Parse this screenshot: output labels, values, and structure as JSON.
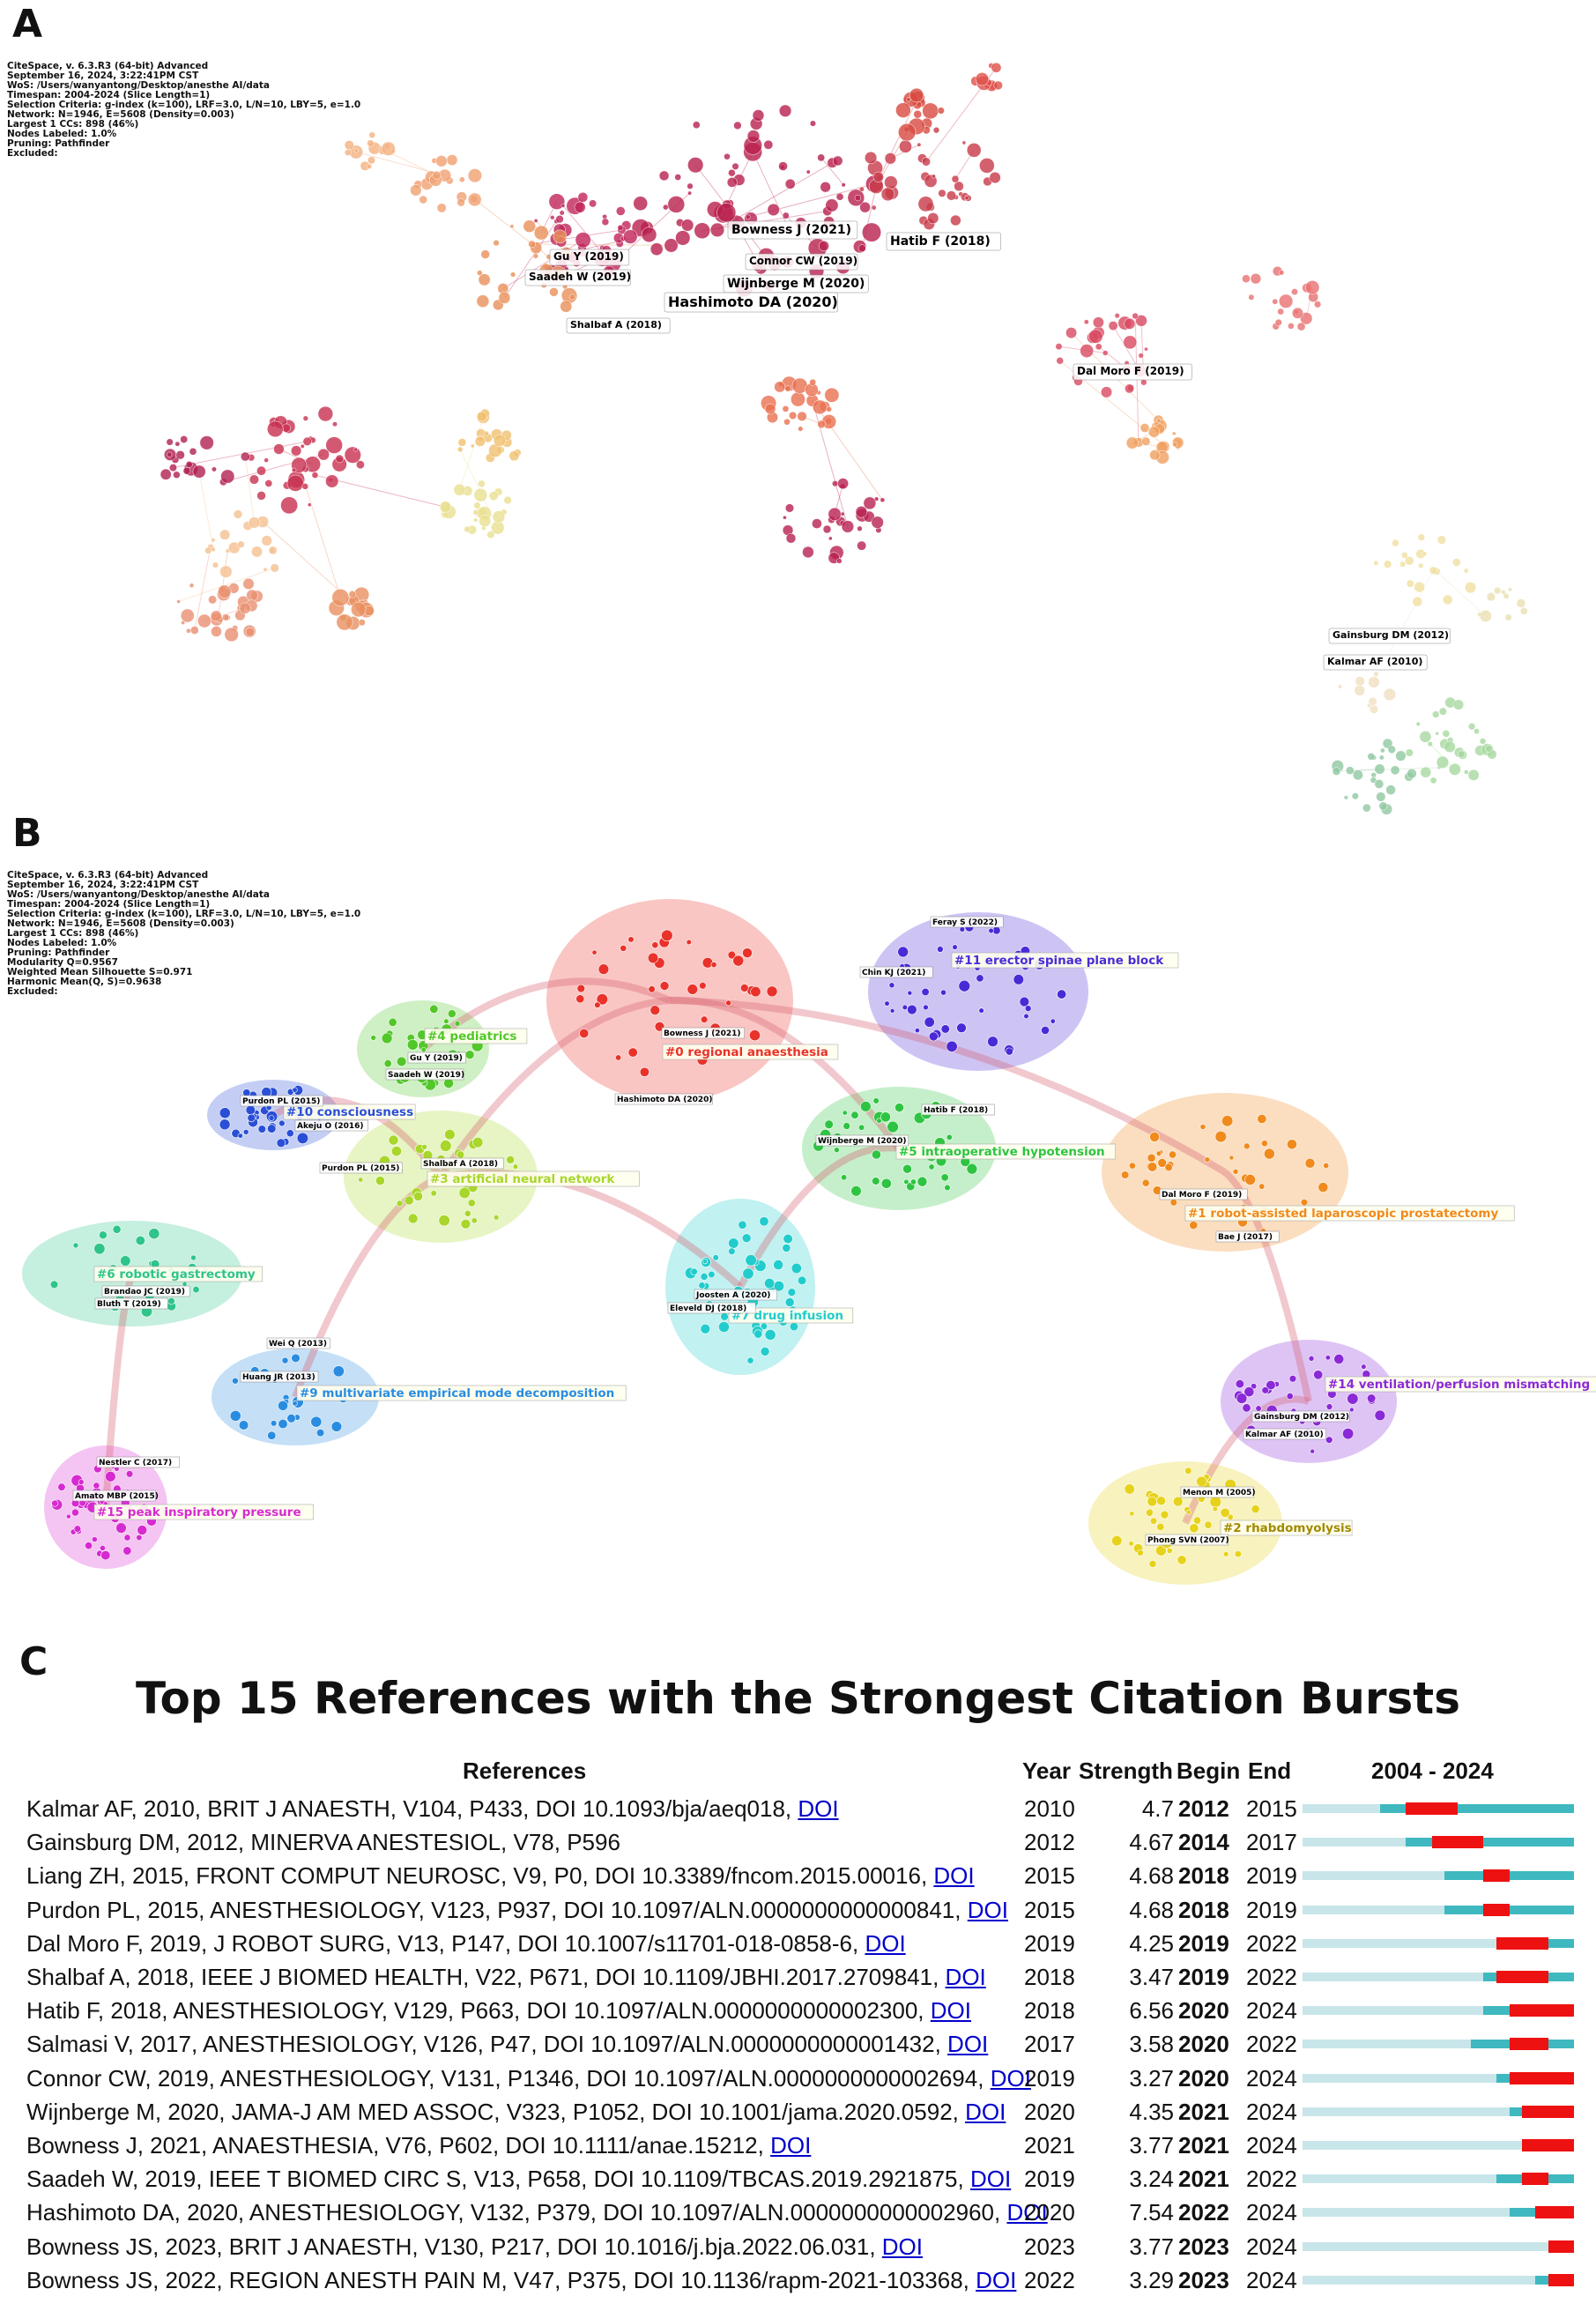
{
  "panels": {
    "a_letter": "A",
    "b_letter": "B",
    "c_letter": "C"
  },
  "panel_a": {
    "meta_lines": [
      "CiteSpace, v. 6.3.R3 (64-bit) Advanced",
      "September 16, 2024, 3:22:41PM CST",
      "WoS: /Users/wanyantong/Desktop/anesthe AI/data",
      "Timespan: 2004-2024 (Slice Length=1)",
      "Selection Criteria: g-index (k=100), LRF=3.0, L/N=10, LBY=5, e=1.0",
      "Network: N=1946, E=5608 (Density=0.003)",
      "Largest 1 CCs: 898 (46%)",
      "Nodes Labeled: 1.0%",
      "Pruning: Pathfinder",
      "Excluded:"
    ],
    "node_labels": [
      "Bowness J (2021)",
      "Hatib F (2018)",
      "Gu Y (2019)",
      "Connor CW (2019)",
      "Saadeh W (2019)",
      "Wijnberge M (2020)",
      "Hashimoto DA (2020)",
      "Shalbaf A (2018)",
      "Dal Moro F (2019)",
      "Gainsburg DM (2012)",
      "Kalmar AF (2010)"
    ]
  },
  "panel_b": {
    "meta_lines": [
      "CiteSpace, v. 6.3.R3 (64-bit) Advanced",
      "September 16, 2024, 3:22:41PM CST",
      "WoS: /Users/wanyantong/Desktop/anesthe AI/data",
      "Timespan: 2004-2024 (Slice Length=1)",
      "Selection Criteria: g-index (k=100), LRF=3.0, L/N=10, LBY=5, e=1.0",
      "Network: N=1946, E=5608 (Density=0.003)",
      "Largest 1 CCs: 898 (46%)",
      "Nodes Labeled: 1.0%",
      "Pruning: Pathfinder",
      "Modularity Q=0.9567",
      "Weighted Mean Silhouette S=0.971",
      "Harmonic Mean(Q, S)=0.9638",
      "Excluded:"
    ],
    "clusters": [
      {
        "label": "#0 regional anaesthesia",
        "color": "#e8322a",
        "nodes": [
          "Bowness J (2021)",
          "Hashimoto DA (2020)"
        ]
      },
      {
        "label": "#1 robot-assisted laparoscopic prostatectomy",
        "color": "#f08a1c",
        "nodes": [
          "Dal Moro F (2019)",
          "Bae J (2017)"
        ]
      },
      {
        "label": "#2 rhabdomyolysis",
        "color": "#e6d21a",
        "nodes": [
          "Menon M (2005)",
          "Phong SVN (2007)"
        ]
      },
      {
        "label": "#3 artificial neural network",
        "color": "#a8d62a",
        "nodes": [
          "Purdon PL (2015)",
          "Shalbaf A (2018)"
        ]
      },
      {
        "label": "#4 pediatrics",
        "color": "#52c72a",
        "nodes": [
          "Gu Y (2019)",
          "Saadeh W (2019)"
        ]
      },
      {
        "label": "#5 intraoperative hypotension",
        "color": "#2ec442",
        "nodes": [
          "Wijnberge M (2020)",
          "Hatib F (2018)"
        ]
      },
      {
        "label": "#6 robotic gastrectomy",
        "color": "#2ec48a",
        "nodes": [
          "Brandao JC (2019)",
          "Bluth T (2019)"
        ]
      },
      {
        "label": "#7 drug infusion",
        "color": "#22cccc",
        "nodes": [
          "Joosten A (2020)",
          "Eleveld DJ (2018)"
        ]
      },
      {
        "label": "#9 multivariate empirical mode decomposition",
        "color": "#2a8ce0",
        "nodes": [
          "Wei Q (2013)",
          "Huang JR (2013)"
        ]
      },
      {
        "label": "#10 consciousness",
        "color": "#2a4fd6",
        "nodes": [
          "Purdon PL (2015)",
          "Akeju O (2016)"
        ]
      },
      {
        "label": "#11 erector spinae plane block",
        "color": "#4a2ad6",
        "nodes": [
          "Feray S (2022)",
          "Chin KJ (2021)"
        ]
      },
      {
        "label": "#14 ventilation/perfusion mismatching",
        "color": "#8a2ad6",
        "nodes": [
          "Gainsburg DM (2012)",
          "Kalmar AF (2010)"
        ]
      },
      {
        "label": "#15 peak inspiratory pressure",
        "color": "#d62ad0",
        "nodes": [
          "Nestler C (2017)",
          "Amato MBP (2015)"
        ]
      }
    ]
  },
  "chart_data": {
    "type": "table",
    "title": "Top 15 References with the Strongest Citation Bursts",
    "columns": [
      "References",
      "Year",
      "Strength",
      "Begin",
      "End",
      "2004 - 2024"
    ],
    "timeline": {
      "start": 2004,
      "end": 2024
    },
    "rows": [
      {
        "ref": "Kalmar AF, 2010, BRIT J ANAESTH, V104, P433, DOI 10.1093/bja/aeq018,",
        "doi": "DOI",
        "year": 2010,
        "strength": "4.7",
        "begin": 2012,
        "end": 2015
      },
      {
        "ref": "Gainsburg DM, 2012, MINERVA ANESTESIOL, V78, P596",
        "doi": "",
        "year": 2012,
        "strength": "4.67",
        "begin": 2014,
        "end": 2017
      },
      {
        "ref": "Liang ZH, 2015, FRONT COMPUT NEUROSC, V9, P0, DOI 10.3389/fncom.2015.00016,",
        "doi": "DOI",
        "year": 2015,
        "strength": "4.68",
        "begin": 2018,
        "end": 2019
      },
      {
        "ref": "Purdon PL, 2015, ANESTHESIOLOGY, V123, P937, DOI 10.1097/ALN.0000000000000841,",
        "doi": "DOI",
        "year": 2015,
        "strength": "4.68",
        "begin": 2018,
        "end": 2019
      },
      {
        "ref": "Dal Moro F, 2019, J ROBOT SURG, V13, P147, DOI 10.1007/s11701-018-0858-6,",
        "doi": "DOI",
        "year": 2019,
        "strength": "4.25",
        "begin": 2019,
        "end": 2022
      },
      {
        "ref": "Shalbaf A, 2018, IEEE J BIOMED HEALTH, V22, P671, DOI 10.1109/JBHI.2017.2709841,",
        "doi": "DOI",
        "year": 2018,
        "strength": "3.47",
        "begin": 2019,
        "end": 2022
      },
      {
        "ref": "Hatib F, 2018, ANESTHESIOLOGY, V129, P663, DOI 10.1097/ALN.0000000000002300,",
        "doi": "DOI",
        "year": 2018,
        "strength": "6.56",
        "begin": 2020,
        "end": 2024
      },
      {
        "ref": "Salmasi V, 2017, ANESTHESIOLOGY, V126, P47, DOI 10.1097/ALN.0000000000001432,",
        "doi": "DOI",
        "year": 2017,
        "strength": "3.58",
        "begin": 2020,
        "end": 2022
      },
      {
        "ref": "Connor CW, 2019, ANESTHESIOLOGY, V131, P1346, DOI 10.1097/ALN.0000000000002694,",
        "doi": "DOI",
        "year": 2019,
        "strength": "3.27",
        "begin": 2020,
        "end": 2024
      },
      {
        "ref": "Wijnberge M, 2020, JAMA-J AM MED ASSOC, V323, P1052, DOI 10.1001/jama.2020.0592,",
        "doi": "DOI",
        "year": 2020,
        "strength": "4.35",
        "begin": 2021,
        "end": 2024
      },
      {
        "ref": "Bowness J, 2021, ANAESTHESIA, V76, P602, DOI 10.1111/anae.15212,",
        "doi": "DOI",
        "year": 2021,
        "strength": "3.77",
        "begin": 2021,
        "end": 2024
      },
      {
        "ref": "Saadeh W, 2019, IEEE T BIOMED CIRC S, V13, P658, DOI 10.1109/TBCAS.2019.2921875,",
        "doi": "DOI",
        "year": 2019,
        "strength": "3.24",
        "begin": 2021,
        "end": 2022
      },
      {
        "ref": "Hashimoto DA, 2020, ANESTHESIOLOGY, V132, P379, DOI 10.1097/ALN.0000000000002960,",
        "doi": "DOI",
        "year": 2020,
        "strength": "7.54",
        "begin": 2022,
        "end": 2024
      },
      {
        "ref": "Bowness JS, 2023, BRIT J ANAESTH, V130, P217, DOI 10.1016/j.bja.2022.06.031,",
        "doi": "DOI",
        "year": 2023,
        "strength": "3.77",
        "begin": 2023,
        "end": 2024
      },
      {
        "ref": "Bowness JS, 2022, REGION ANESTH PAIN M, V47, P375, DOI 10.1136/rapm-2021-103368,",
        "doi": "DOI",
        "year": 2022,
        "strength": "3.29",
        "begin": 2023,
        "end": 2024
      }
    ]
  }
}
